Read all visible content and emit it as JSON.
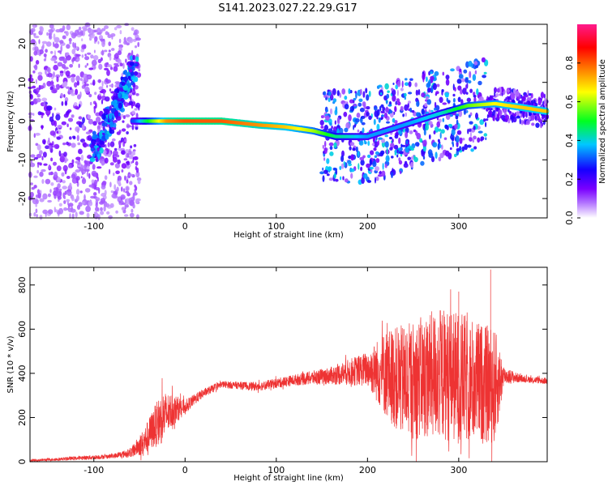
{
  "title": "S141.2023.027.22.29.G17",
  "chart_data": [
    {
      "type": "heatmap",
      "xlabel": "Height of straight line (km)",
      "ylabel": "Frequency (Hz)",
      "xlim": [
        -170,
        397
      ],
      "ylim": [
        -25,
        25
      ],
      "x_ticks": [
        -100,
        0,
        100,
        200,
        300
      ],
      "y_ticks": [
        -20,
        -10,
        0,
        10,
        20
      ],
      "colorbar": {
        "label": "Normalized spectral amplitude",
        "range": [
          0,
          1
        ],
        "ticks": [
          0.0,
          0.2,
          0.4,
          0.6,
          0.8
        ],
        "colormap": [
          "#ffffff",
          "#7a00ff",
          "#1400ff",
          "#00c8ff",
          "#00ff20",
          "#ffff00",
          "#ff7000",
          "#ff0000",
          "#ff1a8c"
        ]
      },
      "ridge": {
        "x": [
          -55,
          -40,
          -20,
          0,
          40,
          80,
          110,
          140,
          165,
          200,
          240,
          280,
          310,
          340,
          370,
          397
        ],
        "y": [
          0,
          0,
          0,
          0,
          0,
          -1,
          -1.5,
          -2.5,
          -4,
          -4,
          -1,
          2,
          4,
          4.5,
          3.5,
          2.5
        ],
        "amplitude": [
          0.3,
          0.5,
          0.75,
          0.8,
          0.8,
          0.75,
          0.7,
          0.6,
          0.45,
          0.35,
          0.35,
          0.4,
          0.55,
          0.65,
          0.7,
          0.7
        ]
      }
    },
    {
      "type": "line",
      "xlabel": "Height of straight line (km)",
      "ylabel": "SNR (10 * v/v)",
      "xlim": [
        -170,
        397
      ],
      "ylim": [
        0,
        880
      ],
      "x_ticks": [
        -100,
        0,
        100,
        200,
        300
      ],
      "y_ticks": [
        0,
        200,
        400,
        600,
        800
      ],
      "color": "#ee3333",
      "envelope": {
        "x": [
          -170,
          -100,
          -80,
          -60,
          -45,
          -35,
          -25,
          -15,
          0,
          20,
          40,
          80,
          120,
          160,
          200,
          220,
          240,
          260,
          280,
          300,
          320,
          340,
          350,
          370,
          397
        ],
        "mean": [
          5,
          20,
          25,
          40,
          90,
          150,
          200,
          230,
          250,
          310,
          350,
          340,
          370,
          390,
          420,
          400,
          360,
          380,
          400,
          380,
          360,
          340,
          390,
          375,
          365
        ],
        "spread": [
          5,
          10,
          10,
          20,
          60,
          90,
          120,
          80,
          30,
          20,
          15,
          20,
          25,
          40,
          80,
          200,
          260,
          280,
          300,
          300,
          280,
          260,
          40,
          15,
          15
        ]
      },
      "peaks": [
        {
          "x": 240,
          "y": 600
        },
        {
          "x": 300,
          "y": 770
        },
        {
          "x": 335,
          "y": 870
        }
      ]
    }
  ]
}
